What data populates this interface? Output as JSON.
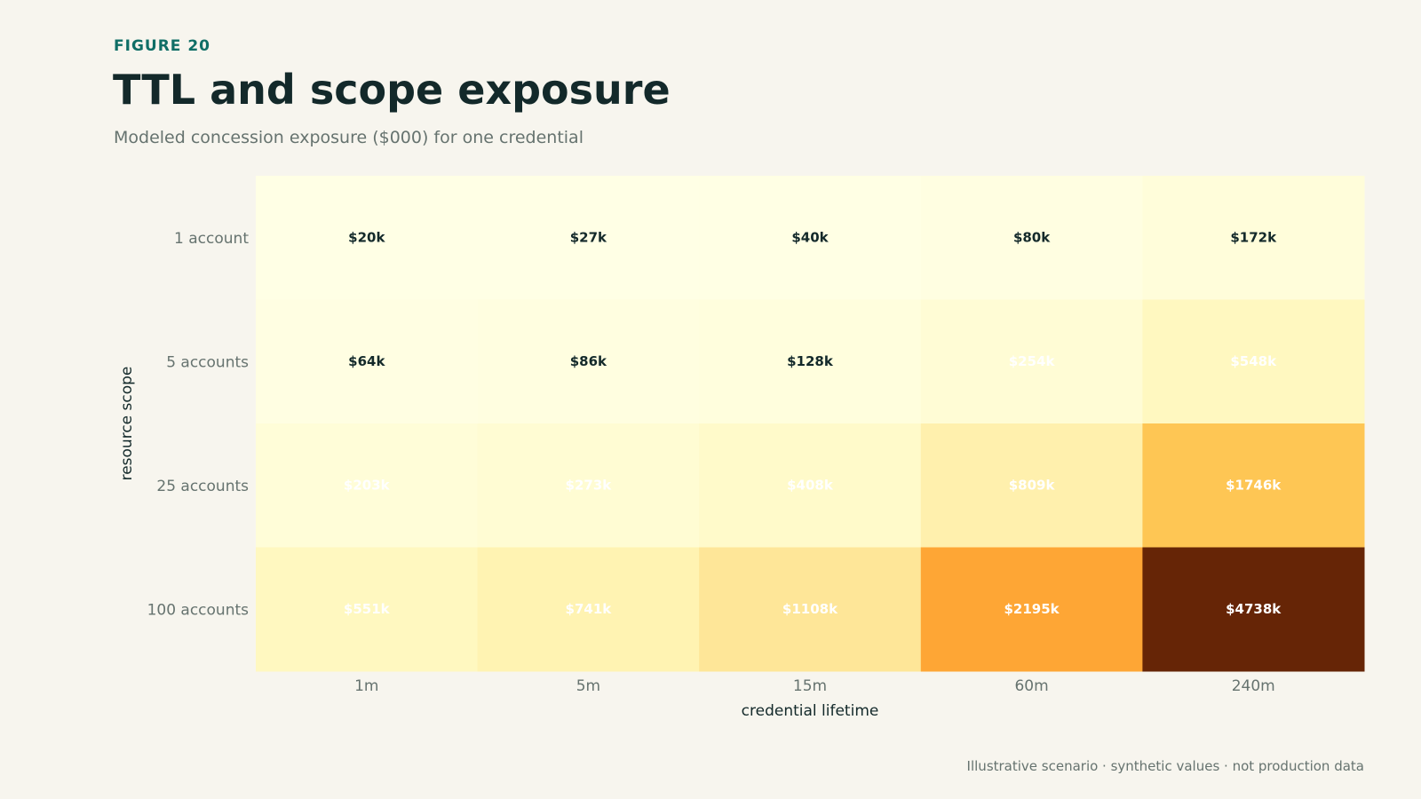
{
  "header": {
    "eyebrow": "FIGURE 20",
    "title": "TTL and scope exposure",
    "subtitle": "Modeled concession exposure ($000) for one credential"
  },
  "footer": {
    "note": "Illustrative scenario · synthetic values · not production data"
  },
  "chart_data": {
    "type": "heatmap",
    "xlabel": "credential lifetime",
    "ylabel": "resource scope",
    "x_categories": [
      "1m",
      "5m",
      "15m",
      "60m",
      "240m"
    ],
    "y_categories": [
      "1 account",
      "5 accounts",
      "25 accounts",
      "100 accounts"
    ],
    "values": [
      [
        20,
        27,
        40,
        80,
        172
      ],
      [
        64,
        86,
        128,
        254,
        548
      ],
      [
        203,
        273,
        408,
        809,
        1746
      ],
      [
        551,
        741,
        1108,
        2195,
        4738
      ]
    ],
    "cell_labels": [
      [
        "$20k",
        "$27k",
        "$40k",
        "$80k",
        "$172k"
      ],
      [
        "$64k",
        "$86k",
        "$128k",
        "$254k",
        "$548k"
      ],
      [
        "$203k",
        "$273k",
        "$408k",
        "$809k",
        "$1746k"
      ],
      [
        "$551k",
        "$741k",
        "$1108k",
        "$2195k",
        "$4738k"
      ]
    ],
    "color_scale": [
      "#ffffe5",
      "#fff7bc",
      "#fee391",
      "#fec44f",
      "#fe9929",
      "#ec7014",
      "#cc4c02",
      "#8c2d04",
      "#662506"
    ],
    "label_colors": {
      "dark": "#13292a",
      "light": "#ffffff"
    },
    "grid": false,
    "legend": "none"
  }
}
